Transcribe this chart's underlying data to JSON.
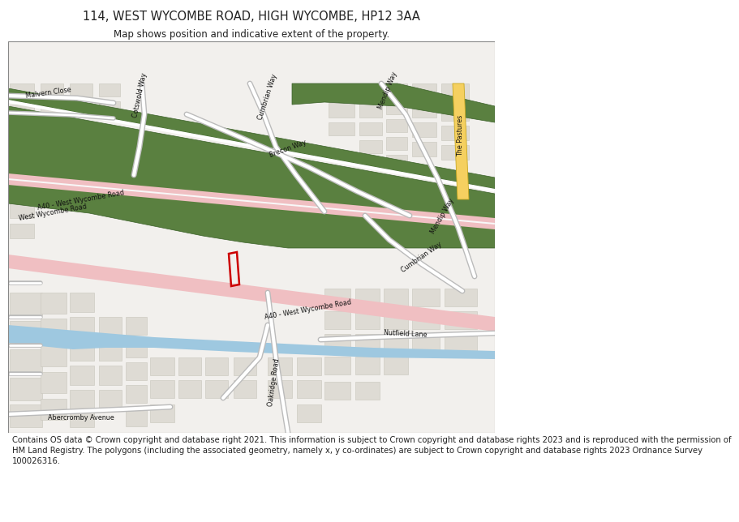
{
  "title_line1": "114, WEST WYCOMBE ROAD, HIGH WYCOMBE, HP12 3AA",
  "title_line2": "Map shows position and indicative extent of the property.",
  "footer_text": "Contains OS data © Crown copyright and database right 2021. This information is subject to Crown copyright and database rights 2023 and is reproduced with the permission of HM Land Registry. The polygons (including the associated geometry, namely x, y co-ordinates) are subject to Crown copyright and database rights 2023 Ordnance Survey 100026316.",
  "map_bg": "#f2f0ed",
  "road_pink": "#f0bfc2",
  "green_fill": "#5a8040",
  "green_dark": "#3a6028",
  "blue_water": "#9ec8e0",
  "building_fill": "#dedbd4",
  "building_stroke": "#c8c5bc",
  "yellow_road": "#f5d060",
  "yellow_road_stroke": "#c8a820",
  "red_plot": "#cc0000",
  "white": "#ffffff",
  "text_dark": "#222222",
  "road_white": "#ffffff",
  "road_outline": "#bbbbbb",
  "title_fs": 10.5,
  "sub_fs": 8.5,
  "footer_fs": 7.2,
  "road_label_fs": 5.8
}
